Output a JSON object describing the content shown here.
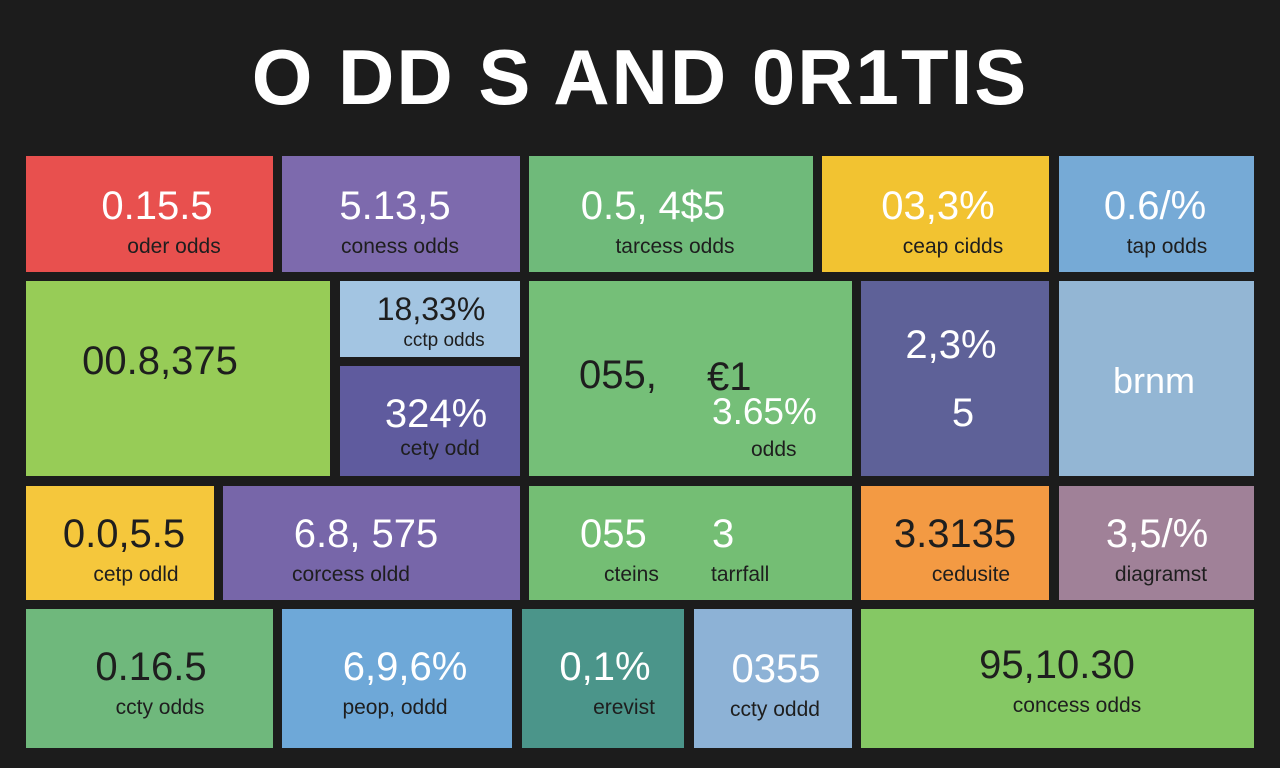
{
  "header": {
    "title": "O DD S AND 0R1TIS"
  },
  "tiles": [
    {
      "id": "t1",
      "color": "#e8504e",
      "value": "0.15.5",
      "label": "oder odds"
    },
    {
      "id": "t2",
      "color": "#7d6aad",
      "value": "5.13,5",
      "label": "coness odds"
    },
    {
      "id": "t3",
      "color": "#6fba7a",
      "value": "0.5, 4$5",
      "label": "tarcess odds"
    },
    {
      "id": "t4",
      "color": "#f2c331",
      "value": "03,3%",
      "label": "ceap cidds"
    },
    {
      "id": "t5",
      "color": "#76aad6",
      "value": "0.6/%",
      "label": "tap odds"
    },
    {
      "id": "t6",
      "color": "#97cc57",
      "value": "00.8,375",
      "label": ""
    },
    {
      "id": "t7",
      "color": "#a3c5e2",
      "value": "18,33%",
      "label": "cctp  odds"
    },
    {
      "id": "t8",
      "color": "#5f5b9e",
      "value": "324%",
      "label": "cety odd"
    },
    {
      "id": "t9",
      "color": "#75bf78",
      "value": "055,",
      "label": "odds",
      "value2": "€1",
      "value3": "3.65%"
    },
    {
      "id": "t10",
      "color": "#5e6198",
      "value": "2,3%",
      "label": "",
      "value2": "5"
    },
    {
      "id": "t11",
      "color": "#93b6d4",
      "value": "brnm",
      "label": ""
    },
    {
      "id": "t12",
      "color": "#f5c73c",
      "value": "0.0,5.5",
      "label": "cetp odld"
    },
    {
      "id": "t13",
      "color": "#7766a9",
      "value": "6.8, 575",
      "label": "corcess oldd"
    },
    {
      "id": "t14",
      "color": "#74be74",
      "value": "055",
      "label": "cteins",
      "value2": "3",
      "label2": "tarrfall"
    },
    {
      "id": "t15",
      "color": "#f39a43",
      "value": "3.3135",
      "label": "cedusite"
    },
    {
      "id": "t16",
      "color": "#a08198",
      "value": "3,5/%",
      "label": "diagramst"
    },
    {
      "id": "t17",
      "color": "#6fb87c",
      "value": "0.16.5",
      "label": "ccty odds"
    },
    {
      "id": "t18",
      "color": "#6ea8d8",
      "value": "6,9,6%",
      "label": "peop, oddd"
    },
    {
      "id": "t19",
      "color": "#4b958a",
      "value": "0,1%",
      "label": "erevist"
    },
    {
      "id": "t20",
      "color": "#8db2d6",
      "value": "0355",
      "label": "ccty oddd"
    },
    {
      "id": "t21",
      "color": "#85c864",
      "value": "95,10.30",
      "label": "concess odds"
    }
  ]
}
